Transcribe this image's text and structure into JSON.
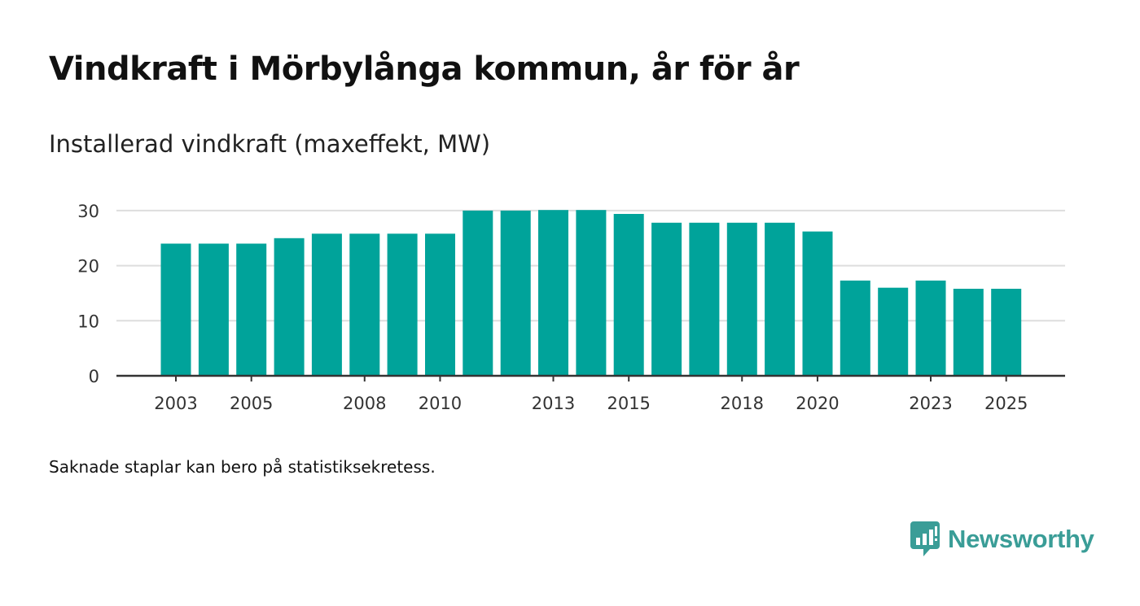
{
  "title": "Vindkraft i Mörbylånga kommun, år för år",
  "subtitle": "Installerad vindkraft (maxeffekt, MW)",
  "footnote": "Saknade staplar kan bero på statistiksekretess.",
  "brand": {
    "name": "Newsworthy",
    "icon": "newsworthy-logo-icon",
    "color": "#3a9d97"
  },
  "colors": {
    "bar": "#00a39a",
    "grid": "#dddddd",
    "axis": "#333333"
  },
  "chart_data": {
    "type": "bar",
    "title": "Vindkraft i Mörbylånga kommun, år för år",
    "ylabel": "Installerad vindkraft (maxeffekt, MW)",
    "xlabel": "",
    "categories": [
      "2003",
      "2004",
      "2005",
      "2006",
      "2007",
      "2008",
      "2009",
      "2010",
      "2011",
      "2012",
      "2013",
      "2014",
      "2015",
      "2016",
      "2017",
      "2018",
      "2019",
      "2020",
      "2021",
      "2022",
      "2023",
      "2024",
      "2025"
    ],
    "values": [
      24,
      24,
      24,
      25,
      25.8,
      25.8,
      25.8,
      25.8,
      30,
      30,
      30.1,
      30.1,
      29.4,
      27.8,
      27.8,
      27.8,
      27.8,
      26.2,
      17.3,
      16,
      17.3,
      15.8,
      15.8
    ],
    "xtick_labels": [
      "2003",
      "2005",
      "2008",
      "2010",
      "2013",
      "2015",
      "2018",
      "2020",
      "2023",
      "2025"
    ],
    "yticks": [
      0,
      10,
      20,
      30
    ],
    "ylim": [
      0,
      30
    ],
    "grid": true,
    "legend": "none"
  }
}
